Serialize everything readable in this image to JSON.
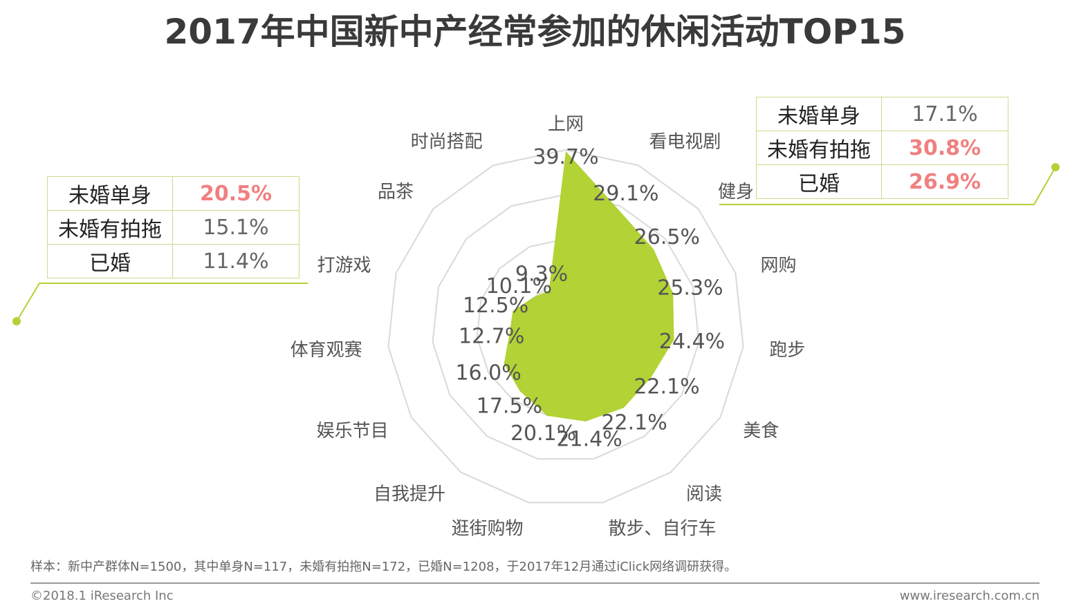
{
  "title": "2017年中国新中产经常参加的休闲活动TOP15",
  "chart_data": {
    "type": "radar",
    "title": "2017年中国新中产经常参加的休闲活动TOP15",
    "rmax": 40,
    "rings": 4,
    "categories": [
      "上网",
      "看电视剧",
      "健身",
      "网购",
      "跑步",
      "美食",
      "阅读",
      "散步、自行车",
      "逛街购物",
      "自我提升",
      "娱乐节目",
      "体育观赛",
      "打游戏",
      "品茶",
      "时尚搭配"
    ],
    "values": [
      39.7,
      29.1,
      26.5,
      25.3,
      24.4,
      22.1,
      22.1,
      21.4,
      20.1,
      17.5,
      16.0,
      12.7,
      12.5,
      10.1,
      9.3
    ],
    "value_labels": [
      "39.7%",
      "29.1%",
      "26.5%",
      "25.3%",
      "24.4%",
      "22.1%",
      "22.1%",
      "21.4%",
      "20.1%",
      "17.5%",
      "16.0%",
      "12.7%",
      "12.5%",
      "10.1%",
      "9.3%"
    ],
    "fill_color": "#b2d235",
    "grid_color": "#d9d9d9"
  },
  "left_table": {
    "rows": [
      {
        "label": "未婚单身",
        "value": "20.5%",
        "highlight": true
      },
      {
        "label": "未婚有拍拖",
        "value": "15.1%",
        "highlight": false
      },
      {
        "label": "已婚",
        "value": "11.4%",
        "highlight": false
      }
    ]
  },
  "right_table": {
    "rows": [
      {
        "label": "未婚单身",
        "value": "17.1%",
        "highlight": false
      },
      {
        "label": "未婚有拍拖",
        "value": "30.8%",
        "highlight": true
      },
      {
        "label": "已婚",
        "value": "26.9%",
        "highlight": true
      }
    ]
  },
  "colors": {
    "accent": "#b2d235",
    "highlight": "#f08080",
    "border": "#c8dc8c"
  },
  "footnote": "样本：新中产群体N=1500，其中单身N=117，未婚有拍拖N=172，已婚N=1208，于2017年12月通过iClick网络调研获得。",
  "copyright": "©2018.1 iResearch Inc",
  "website": "www.iresearch.com.cn"
}
